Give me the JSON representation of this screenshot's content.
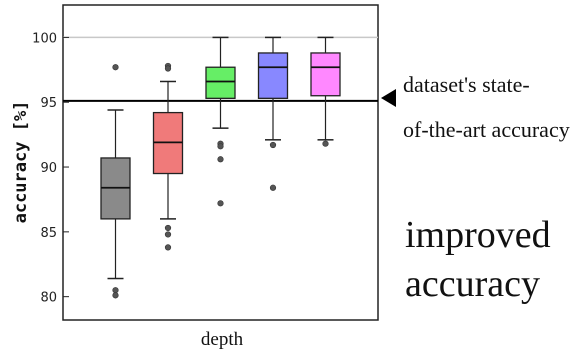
{
  "chart_data": {
    "type": "box",
    "xlabel": "depth",
    "ylabel": "accuracy [%]",
    "ylim": [
      78.2,
      102.5
    ],
    "yticks": [
      80,
      85,
      90,
      95,
      100
    ],
    "reference_lines": [
      {
        "value": 100,
        "color": "#c8c8c8"
      },
      {
        "value": 95.1,
        "color": "#000000"
      }
    ],
    "boxes": [
      {
        "color": "#8a8a8a",
        "q1": 86.0,
        "median": 88.4,
        "q3": 90.7,
        "whisker_low": 81.4,
        "whisker_high": 94.4,
        "outliers": [
          97.7,
          80.5,
          80.1
        ]
      },
      {
        "color": "#f07a7a",
        "q1": 89.5,
        "median": 91.9,
        "q3": 94.2,
        "whisker_low": 86.0,
        "whisker_high": 96.6,
        "outliers": [
          97.8,
          97.6,
          85.3,
          84.8,
          83.8
        ]
      },
      {
        "color": "#66ee66",
        "q1": 95.3,
        "median": 96.6,
        "q3": 97.7,
        "whisker_low": 93.0,
        "whisker_high": 100.0,
        "outliers": [
          91.8,
          91.6,
          90.6,
          87.2
        ]
      },
      {
        "color": "#8888ff",
        "q1": 95.3,
        "median": 97.7,
        "q3": 98.8,
        "whisker_low": 92.1,
        "whisker_high": 100.0,
        "outliers": [
          91.7,
          88.4
        ]
      },
      {
        "color": "#ff88ff",
        "q1": 95.5,
        "median": 97.7,
        "q3": 98.8,
        "whisker_low": 92.1,
        "whisker_high": 100.0,
        "outliers": [
          91.8
        ]
      }
    ],
    "annotations": {
      "state_of_art_line1": "dataset's state-",
      "state_of_art_line2": "of-the-art accuracy",
      "improved_line1": "improved",
      "improved_line2": "accuracy"
    }
  }
}
